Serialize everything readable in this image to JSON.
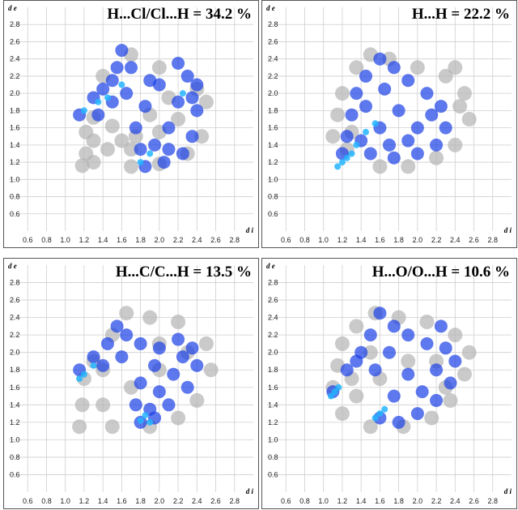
{
  "chart_data": [
    {
      "type": "scatter",
      "title": "H...Cl/Cl...H = 34.2 %",
      "xlabel": "d i",
      "ylabel": "d e",
      "xlim": [
        0.4,
        3.0
      ],
      "ylim": [
        0.4,
        3.0
      ],
      "x_ticks": [
        "0.6",
        "0.8",
        "1.0",
        "1.2",
        "1.4",
        "1.6",
        "1.8",
        "2.0",
        "2.2",
        "2.4",
        "2.6",
        "2.8"
      ],
      "y_ticks": [
        "0.6",
        "0.8",
        "1.0",
        "1.2",
        "1.4",
        "1.6",
        "1.8",
        "2.0",
        "2.2",
        "2.4",
        "2.6",
        "2.8"
      ],
      "grid": true,
      "series": [
        {
          "color": "#b4b4b4",
          "points": [
            [
              1.18,
              1.16
            ],
            [
              1.22,
              1.3
            ],
            [
              1.22,
              1.55
            ],
            [
              1.3,
              1.72
            ],
            [
              1.5,
              1.62
            ],
            [
              1.75,
              1.5
            ],
            [
              1.9,
              1.75
            ],
            [
              2.1,
              1.95
            ],
            [
              2.4,
              2.05
            ],
            [
              2.5,
              1.9
            ],
            [
              2.45,
              1.5
            ],
            [
              2.3,
              1.3
            ],
            [
              2.0,
              1.18
            ],
            [
              1.7,
              1.15
            ],
            [
              1.3,
              1.2
            ],
            [
              1.45,
              1.35
            ],
            [
              1.7,
              1.35
            ],
            [
              2.0,
              1.55
            ],
            [
              2.2,
              1.7
            ],
            [
              2.0,
              2.3
            ],
            [
              1.7,
              2.45
            ],
            [
              1.4,
              2.2
            ],
            [
              1.6,
              1.45
            ],
            [
              1.3,
              1.45
            ]
          ]
        },
        {
          "color": "#1a3ee6",
          "points": [
            [
              1.15,
              1.75
            ],
            [
              1.3,
              1.95
            ],
            [
              1.4,
              2.05
            ],
            [
              1.5,
              2.15
            ],
            [
              1.55,
              2.3
            ],
            [
              1.6,
              2.5
            ],
            [
              1.7,
              2.3
            ],
            [
              1.9,
              2.15
            ],
            [
              2.0,
              2.1
            ],
            [
              2.2,
              2.35
            ],
            [
              2.3,
              2.2
            ],
            [
              2.4,
              2.1
            ],
            [
              2.4,
              1.8
            ],
            [
              2.35,
              1.5
            ],
            [
              2.25,
              1.3
            ],
            [
              2.05,
              1.2
            ],
            [
              1.85,
              1.15
            ],
            [
              1.8,
              1.35
            ],
            [
              1.75,
              1.6
            ],
            [
              1.85,
              1.85
            ],
            [
              1.5,
              1.9
            ],
            [
              1.35,
              1.75
            ],
            [
              2.1,
              1.6
            ],
            [
              2.2,
              1.9
            ],
            [
              1.95,
              1.4
            ],
            [
              1.65,
              2.0
            ],
            [
              2.1,
              1.35
            ],
            [
              2.35,
              1.95
            ]
          ]
        },
        {
          "color": "#23b4ff",
          "points": [
            [
              1.2,
              1.8
            ],
            [
              1.35,
              1.9
            ],
            [
              1.45,
              1.95
            ],
            [
              1.8,
              1.2
            ],
            [
              1.9,
              1.3
            ],
            [
              2.25,
              2.0
            ],
            [
              1.6,
              2.1
            ]
          ]
        }
      ]
    },
    {
      "type": "scatter",
      "title": "H...H = 22.2 %",
      "xlabel": "d i",
      "ylabel": "d e",
      "xlim": [
        0.4,
        3.0
      ],
      "ylim": [
        0.4,
        3.0
      ],
      "x_ticks": [
        "0.6",
        "0.8",
        "1.0",
        "1.2",
        "1.4",
        "1.6",
        "1.8",
        "2.0",
        "2.2",
        "2.4",
        "2.6",
        "2.8"
      ],
      "y_ticks": [
        "0.6",
        "0.8",
        "1.0",
        "1.2",
        "1.4",
        "1.6",
        "1.8",
        "2.0",
        "2.2",
        "2.4",
        "2.6",
        "2.8"
      ],
      "grid": true,
      "series": [
        {
          "color": "#b4b4b4",
          "points": [
            [
              1.15,
              1.75
            ],
            [
              1.2,
              2.0
            ],
            [
              1.35,
              2.3
            ],
            [
              1.5,
              2.45
            ],
            [
              1.7,
              2.4
            ],
            [
              2.0,
              2.3
            ],
            [
              2.3,
              2.2
            ],
            [
              2.5,
              2.0
            ],
            [
              2.55,
              1.7
            ],
            [
              2.4,
              1.4
            ],
            [
              2.2,
              1.25
            ],
            [
              1.9,
              1.15
            ],
            [
              1.6,
              1.15
            ],
            [
              1.25,
              1.35
            ],
            [
              1.1,
              1.5
            ],
            [
              2.45,
              1.85
            ],
            [
              1.3,
              1.55
            ],
            [
              2.4,
              2.3
            ]
          ]
        },
        {
          "color": "#1a3ee6",
          "points": [
            [
              1.2,
              1.3
            ],
            [
              1.25,
              1.5
            ],
            [
              1.3,
              1.75
            ],
            [
              1.35,
              2.0
            ],
            [
              1.45,
              2.2
            ],
            [
              1.6,
              2.4
            ],
            [
              1.75,
              2.3
            ],
            [
              1.9,
              2.15
            ],
            [
              2.1,
              2.0
            ],
            [
              2.25,
              1.85
            ],
            [
              2.3,
              1.6
            ],
            [
              2.2,
              1.4
            ],
            [
              2.0,
              1.3
            ],
            [
              1.75,
              1.25
            ],
            [
              1.5,
              1.3
            ],
            [
              1.6,
              1.6
            ],
            [
              1.8,
              1.8
            ],
            [
              2.0,
              1.6
            ],
            [
              1.45,
              1.85
            ],
            [
              1.65,
              2.05
            ],
            [
              1.9,
              1.45
            ],
            [
              2.15,
              1.75
            ],
            [
              1.4,
              1.45
            ],
            [
              1.7,
              1.4
            ]
          ]
        },
        {
          "color": "#23b4ff",
          "points": [
            [
              1.15,
              1.15
            ],
            [
              1.2,
              1.2
            ],
            [
              1.25,
              1.25
            ],
            [
              1.3,
              1.3
            ],
            [
              1.35,
              1.4
            ],
            [
              1.45,
              1.55
            ],
            [
              1.55,
              1.65
            ]
          ]
        }
      ]
    },
    {
      "type": "scatter",
      "title": "H...C/C...H = 13.5 %",
      "xlabel": "d i",
      "ylabel": "d e",
      "xlim": [
        0.4,
        3.0
      ],
      "ylim": [
        0.4,
        3.0
      ],
      "x_ticks": [
        "0.6",
        "0.8",
        "1.0",
        "1.2",
        "1.4",
        "1.6",
        "1.8",
        "2.0",
        "2.2",
        "2.4",
        "2.6",
        "2.8"
      ],
      "y_ticks": [
        "0.6",
        "0.8",
        "1.0",
        "1.2",
        "1.4",
        "1.6",
        "1.8",
        "2.0",
        "2.2",
        "2.4",
        "2.6",
        "2.8"
      ],
      "grid": true,
      "series": [
        {
          "color": "#b4b4b4",
          "points": [
            [
              1.15,
              1.15
            ],
            [
              1.18,
              1.4
            ],
            [
              1.2,
              1.7
            ],
            [
              1.3,
              1.9
            ],
            [
              1.5,
              2.2
            ],
            [
              1.65,
              2.45
            ],
            [
              1.9,
              2.4
            ],
            [
              2.2,
              2.35
            ],
            [
              2.5,
              2.1
            ],
            [
              2.55,
              1.8
            ],
            [
              2.4,
              1.45
            ],
            [
              2.2,
              1.25
            ],
            [
              1.9,
              1.15
            ],
            [
              1.5,
              1.15
            ],
            [
              1.4,
              1.4
            ],
            [
              1.7,
              1.6
            ],
            [
              2.0,
              1.8
            ],
            [
              2.3,
              2.0
            ],
            [
              1.4,
              1.8
            ],
            [
              2.0,
              2.1
            ]
          ]
        },
        {
          "color": "#1a3ee6",
          "points": [
            [
              1.15,
              1.8
            ],
            [
              1.3,
              1.95
            ],
            [
              1.45,
              2.1
            ],
            [
              1.55,
              2.3
            ],
            [
              1.65,
              2.2
            ],
            [
              1.8,
              2.1
            ],
            [
              2.0,
              2.05
            ],
            [
              2.2,
              2.15
            ],
            [
              2.35,
              2.05
            ],
            [
              2.4,
              1.85
            ],
            [
              2.3,
              1.6
            ],
            [
              2.1,
              1.4
            ],
            [
              1.95,
              1.25
            ],
            [
              1.8,
              1.2
            ],
            [
              1.75,
              1.4
            ],
            [
              1.8,
              1.65
            ],
            [
              1.95,
              1.85
            ],
            [
              1.6,
              1.95
            ],
            [
              1.4,
              1.85
            ],
            [
              2.15,
              1.75
            ],
            [
              2.25,
              1.95
            ],
            [
              2.0,
              1.55
            ],
            [
              1.9,
              1.35
            ]
          ]
        },
        {
          "color": "#23b4ff",
          "points": [
            [
              1.15,
              1.7
            ],
            [
              1.2,
              1.75
            ],
            [
              1.8,
              1.22
            ],
            [
              1.85,
              1.28
            ],
            [
              1.9,
              1.2
            ],
            [
              1.3,
              1.85
            ]
          ]
        }
      ]
    },
    {
      "type": "scatter",
      "title": "H...O/O...H = 10.6 %",
      "xlabel": "d i",
      "ylabel": "d e",
      "xlim": [
        0.4,
        3.0
      ],
      "ylim": [
        0.4,
        3.0
      ],
      "x_ticks": [
        "0.6",
        "0.8",
        "1.0",
        "1.2",
        "1.4",
        "1.6",
        "1.8",
        "2.0",
        "2.2",
        "2.4",
        "2.6",
        "2.8"
      ],
      "y_ticks": [
        "0.6",
        "0.8",
        "1.0",
        "1.2",
        "1.4",
        "1.6",
        "1.8",
        "2.0",
        "2.2",
        "2.4",
        "2.6",
        "2.8"
      ],
      "grid": true,
      "series": [
        {
          "color": "#b4b4b4",
          "points": [
            [
              1.1,
              1.6
            ],
            [
              1.15,
              1.85
            ],
            [
              1.2,
              2.1
            ],
            [
              1.35,
              2.3
            ],
            [
              1.55,
              2.45
            ],
            [
              1.8,
              2.4
            ],
            [
              2.1,
              2.35
            ],
            [
              2.4,
              2.2
            ],
            [
              2.55,
              2.0
            ],
            [
              2.5,
              1.75
            ],
            [
              2.35,
              1.45
            ],
            [
              2.15,
              1.25
            ],
            [
              1.85,
              1.15
            ],
            [
              1.5,
              1.15
            ],
            [
              1.2,
              1.3
            ],
            [
              1.35,
              1.5
            ],
            [
              1.6,
              1.7
            ],
            [
              1.9,
              1.9
            ],
            [
              2.2,
              1.9
            ],
            [
              1.5,
              2.0
            ],
            [
              2.3,
              1.6
            ],
            [
              1.3,
              1.7
            ]
          ]
        },
        {
          "color": "#1a3ee6",
          "points": [
            [
              1.1,
              1.55
            ],
            [
              1.25,
              1.8
            ],
            [
              1.4,
              2.0
            ],
            [
              1.5,
              2.2
            ],
            [
              1.6,
              2.45
            ],
            [
              1.75,
              2.3
            ],
            [
              1.9,
              2.2
            ],
            [
              2.1,
              2.1
            ],
            [
              2.3,
              2.05
            ],
            [
              2.4,
              1.9
            ],
            [
              2.35,
              1.65
            ],
            [
              2.2,
              1.45
            ],
            [
              2.0,
              1.3
            ],
            [
              1.8,
              1.2
            ],
            [
              1.6,
              1.25
            ],
            [
              1.75,
              1.5
            ],
            [
              1.9,
              1.75
            ],
            [
              1.55,
              1.8
            ],
            [
              1.35,
              1.9
            ],
            [
              2.2,
              1.8
            ],
            [
              2.05,
              1.55
            ],
            [
              1.7,
              2.0
            ],
            [
              2.25,
              2.3
            ]
          ]
        },
        {
          "color": "#23b4ff",
          "points": [
            [
              1.08,
              1.5
            ],
            [
              1.12,
              1.55
            ],
            [
              1.16,
              1.6
            ],
            [
              1.55,
              1.25
            ],
            [
              1.6,
              1.3
            ],
            [
              1.65,
              1.35
            ]
          ]
        }
      ]
    }
  ]
}
